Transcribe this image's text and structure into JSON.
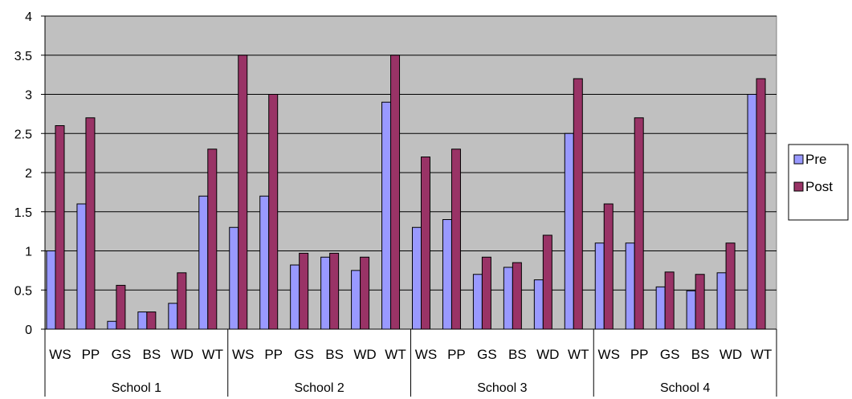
{
  "chart_data": {
    "type": "bar",
    "groups": [
      "School 1",
      "School 2",
      "School 3",
      "School 4"
    ],
    "categories": [
      "WS",
      "PP",
      "GS",
      "BS",
      "WD",
      "WT"
    ],
    "series": [
      {
        "name": "Pre",
        "color": "#9999ff",
        "values": [
          [
            1.0,
            1.6,
            0.1,
            0.22,
            0.33,
            1.7
          ],
          [
            1.3,
            1.7,
            0.82,
            0.92,
            0.75,
            2.9
          ],
          [
            1.3,
            1.4,
            0.7,
            0.79,
            0.63,
            2.5
          ],
          [
            1.1,
            1.1,
            0.54,
            0.49,
            0.72,
            3.0
          ]
        ]
      },
      {
        "name": "Post",
        "color": "#993366",
        "values": [
          [
            2.6,
            2.7,
            0.56,
            0.22,
            0.72,
            2.3
          ],
          [
            3.5,
            3.0,
            0.97,
            0.97,
            0.92,
            3.5
          ],
          [
            2.2,
            2.3,
            0.92,
            0.85,
            1.2,
            3.2
          ],
          [
            1.6,
            2.7,
            0.73,
            0.7,
            1.1,
            3.2
          ]
        ]
      }
    ],
    "ylim": [
      0,
      4
    ],
    "yticks": [
      "0",
      "0.5",
      "1",
      "1.5",
      "2",
      "2.5",
      "3",
      "3.5",
      "4"
    ],
    "grid": true,
    "plot_background": "#c0c0c0",
    "legend_position": "right"
  }
}
